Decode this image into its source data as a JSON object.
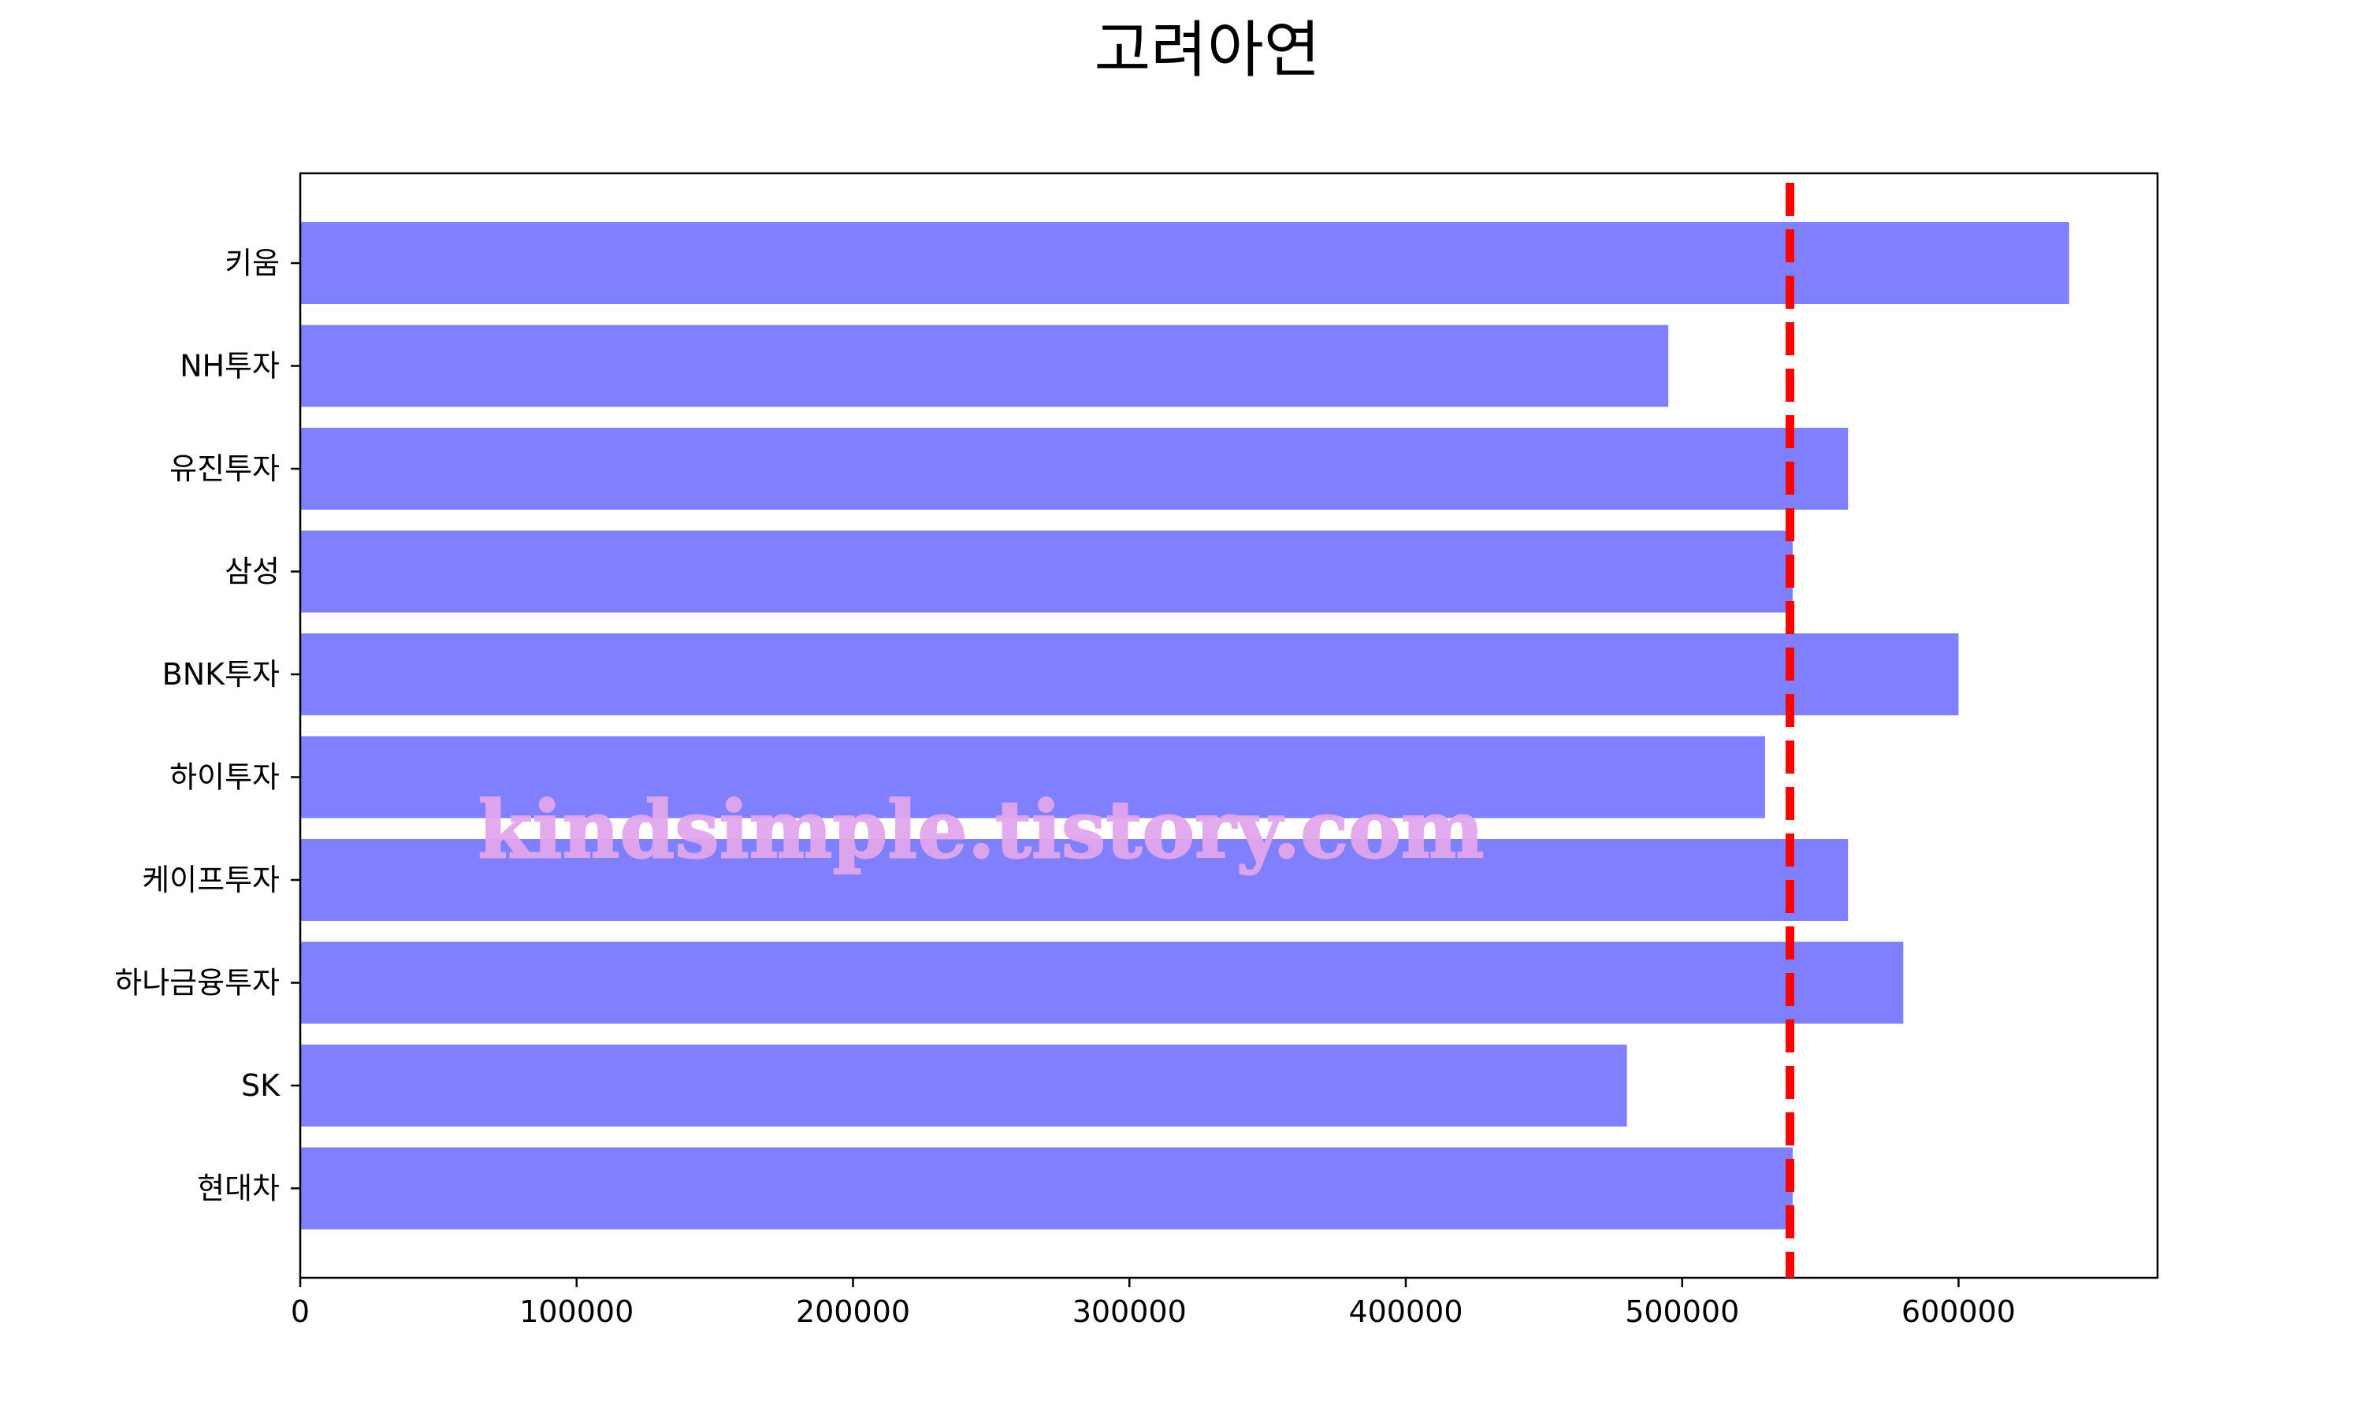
{
  "chart_data": {
    "type": "bar",
    "orientation": "horizontal",
    "title": "고려아연",
    "xlabel": "",
    "ylabel": "",
    "categories": [
      "키움",
      "NH투자",
      "유진투자",
      "삼성",
      "BNK투자",
      "하이투자",
      "케이프투자",
      "하나금융투자",
      "SK",
      "현대차"
    ],
    "values": [
      640000,
      495000,
      560000,
      540000,
      600000,
      530000,
      560000,
      580000,
      480000,
      540000
    ],
    "xlim": [
      0,
      672000
    ],
    "xticks": [
      0,
      100000,
      200000,
      300000,
      400000,
      500000,
      600000
    ],
    "reference_line": {
      "value": 539000,
      "orientation": "vertical",
      "style": "dashed",
      "color": "#ff0000"
    },
    "bar_color": "#8080ff",
    "grid": false,
    "legend": "none",
    "watermark": "kindsimple.tistory.com"
  }
}
